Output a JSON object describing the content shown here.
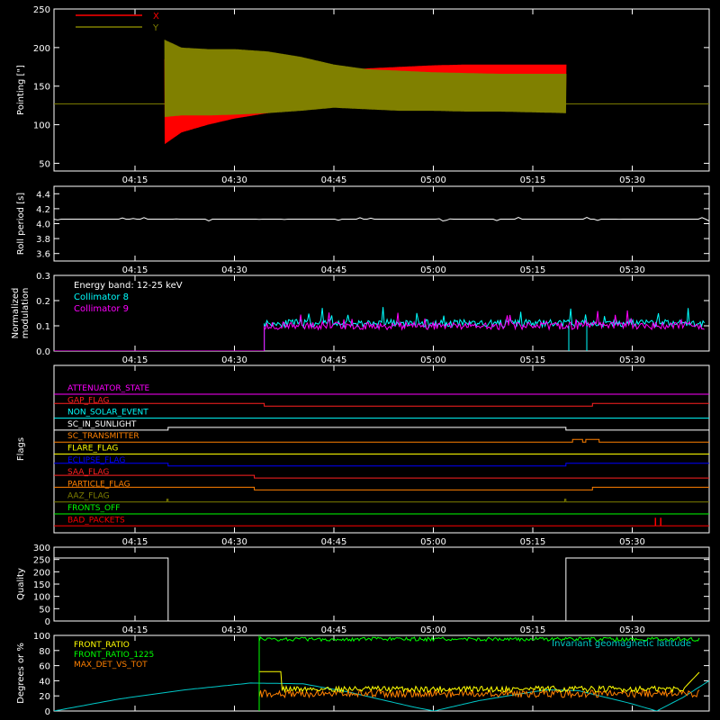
{
  "chart_data": [
    {
      "type": "line",
      "ylabel": "Pointing [\"]",
      "ylim": [
        40,
        250
      ],
      "yticks": [
        50,
        100,
        150,
        200,
        250
      ],
      "xticks": [
        "04:15",
        "04:30",
        "04:45",
        "05:00",
        "05:15",
        "05:30"
      ],
      "baseline": 127,
      "series": [
        {
          "name": "X",
          "color": "#ff0000",
          "t_start": 19.5,
          "t_end": 80,
          "upper": [
            [
              19.5,
              185
            ],
            [
              22,
              178
            ],
            [
              26,
              172
            ],
            [
              30,
              170
            ],
            [
              35,
              168
            ],
            [
              40,
              166
            ],
            [
              45,
              170
            ],
            [
              50,
              173
            ],
            [
              55,
              175
            ],
            [
              60,
              177
            ],
            [
              65,
              178
            ],
            [
              70,
              178
            ],
            [
              75,
              178
            ],
            [
              80,
              178
            ]
          ],
          "lower": [
            [
              19.5,
              75
            ],
            [
              22,
              90
            ],
            [
              26,
              100
            ],
            [
              30,
              108
            ],
            [
              35,
              115
            ],
            [
              40,
              122
            ],
            [
              45,
              128
            ],
            [
              50,
              130
            ],
            [
              55,
              132
            ],
            [
              60,
              133
            ],
            [
              65,
              134
            ],
            [
              70,
              134
            ],
            [
              75,
              134
            ],
            [
              80,
              134
            ]
          ]
        },
        {
          "name": "Y",
          "color": "#808000",
          "t_start": 19.5,
          "t_end": 80,
          "upper": [
            [
              19.5,
              210
            ],
            [
              22,
              200
            ],
            [
              26,
              198
            ],
            [
              30,
              198
            ],
            [
              35,
              195
            ],
            [
              40,
              188
            ],
            [
              45,
              178
            ],
            [
              50,
              172
            ],
            [
              55,
              170
            ],
            [
              60,
              168
            ],
            [
              65,
              167
            ],
            [
              70,
              166
            ],
            [
              75,
              166
            ],
            [
              80,
              166
            ]
          ],
          "lower": [
            [
              19.5,
              110
            ],
            [
              22,
              112
            ],
            [
              26,
              112
            ],
            [
              30,
              113
            ],
            [
              35,
              115
            ],
            [
              40,
              118
            ],
            [
              45,
              122
            ],
            [
              50,
              120
            ],
            [
              55,
              118
            ],
            [
              60,
              118
            ],
            [
              65,
              117
            ],
            [
              70,
              117
            ],
            [
              75,
              116
            ],
            [
              80,
              115
            ]
          ]
        }
      ]
    },
    {
      "type": "line",
      "ylabel": "Roll period [s]",
      "ylim": [
        3.5,
        4.5
      ],
      "yticks": [
        3.6,
        3.8,
        4.0,
        4.2,
        4.4
      ],
      "xticks": [
        "04:15",
        "04:30",
        "04:45",
        "05:00",
        "05:15",
        "05:30"
      ],
      "series": [
        {
          "color": "#ffffff",
          "level": 4.06
        }
      ]
    },
    {
      "type": "line",
      "ylabel": [
        "Normalized",
        "modulation"
      ],
      "ylim": [
        0,
        0.3
      ],
      "yticks": [
        0.0,
        0.1,
        0.2,
        0.3
      ],
      "xticks": [
        "04:15",
        "04:30",
        "04:45",
        "05:00",
        "05:15",
        "05:30"
      ],
      "annotation": "Energy band: 12-25 keV",
      "series": [
        {
          "name": "Collimator 8",
          "color": "#00ffff",
          "t_start": 34.5,
          "level": 0.11
        },
        {
          "name": "Collimator 9",
          "color": "#ff00ff",
          "t_start": 34.5,
          "level": 0.1
        }
      ]
    },
    {
      "type": "line",
      "ylabel": "Flags",
      "xticks": [
        "04:15",
        "04:30",
        "04:45",
        "05:00",
        "05:15",
        "05:30"
      ],
      "series": [
        {
          "name": "ATTENUATOR_STATE",
          "color": "#ff00ff",
          "steps": [
            [
              0,
              0
            ],
            [
              84,
              0
            ]
          ]
        },
        {
          "name": "GAP_FLAG",
          "color": "#ff2020",
          "steps": [
            [
              0,
              1
            ],
            [
              34.5,
              0
            ],
            [
              84,
              1
            ]
          ]
        },
        {
          "name": "NON_SOLAR_EVENT",
          "color": "#00ffff",
          "steps": [
            [
              0,
              0
            ],
            [
              84,
              0
            ]
          ]
        },
        {
          "name": "SC_IN_SUNLIGHT",
          "color": "#ffffff",
          "steps": [
            [
              0,
              0
            ],
            [
              20,
              1
            ],
            [
              80,
              0
            ]
          ]
        },
        {
          "name": "SC_TRANSMITTER",
          "color": "#ff8000",
          "steps": [
            [
              0,
              0
            ],
            [
              81,
              1
            ],
            [
              82.5,
              0
            ],
            [
              83,
              1
            ],
            [
              85,
              0
            ]
          ]
        },
        {
          "name": "FLARE_FLAG",
          "color": "#ffff00",
          "steps": [
            [
              0,
              0
            ],
            [
              84,
              0
            ]
          ]
        },
        {
          "name": "ECLIPSE_FLAG",
          "color": "#0000ff",
          "steps": [
            [
              0,
              1
            ],
            [
              20,
              0
            ],
            [
              80,
              1
            ]
          ]
        },
        {
          "name": "SAA_FLAG",
          "color": "#ff2020",
          "steps": [
            [
              0,
              1
            ],
            [
              33,
              0
            ]
          ]
        },
        {
          "name": "PARTICLE_FLAG",
          "color": "#ff8000",
          "steps": [
            [
              0,
              1
            ],
            [
              33,
              0
            ],
            [
              84,
              1
            ]
          ]
        },
        {
          "name": "AAZ_FLAG",
          "color": "#808000",
          "steps": [
            [
              0,
              0
            ],
            [
              19.8,
              1
            ],
            [
              20,
              0
            ],
            [
              79.8,
              1
            ],
            [
              80,
              0
            ]
          ]
        },
        {
          "name": "FRONTS_OFF",
          "color": "#00ff00",
          "steps": [
            [
              0,
              0
            ],
            [
              84,
              0
            ]
          ]
        },
        {
          "name": "BAD_PACKETS",
          "color": "#ff0000",
          "steps": [
            [
              0,
              0
            ]
          ],
          "spikes": [
            93.5,
            94.3
          ]
        }
      ]
    },
    {
      "type": "line",
      "ylabel": "Quality",
      "ylim": [
        0,
        300
      ],
      "yticks": [
        0,
        50,
        100,
        150,
        200,
        250,
        300
      ],
      "xticks": [
        "04:15",
        "04:30",
        "04:45",
        "05:00",
        "05:15",
        "05:30"
      ],
      "series": [
        {
          "color": "#ffffff",
          "steps": [
            [
              0,
              256
            ],
            [
              20,
              0
            ],
            [
              80,
              256
            ]
          ]
        }
      ]
    },
    {
      "type": "line",
      "ylabel": "Degrees or %",
      "ylim": [
        0,
        100
      ],
      "yticks": [
        0,
        20,
        40,
        60,
        80,
        100
      ],
      "annotation": "Invariant geomagnetic latitude",
      "series": [
        {
          "name": "FRONT_RATIO",
          "color": "#ffff00",
          "t_start": 34.5,
          "level": 30
        },
        {
          "name": "FRONT_RATIO_1225",
          "color": "#00ff00",
          "t_start": 34.5,
          "level": 95
        },
        {
          "name": "MAX_DET_VS_TOT",
          "color": "#ff8000",
          "t_start": 34.5,
          "level": 25
        },
        {
          "color": "#00c8c8",
          "curve": [
            [
              0,
              0
            ],
            [
              10,
              16
            ],
            [
              20,
              28
            ],
            [
              30,
              37
            ],
            [
              38,
              36
            ],
            [
              45,
              25
            ],
            [
              55,
              5
            ],
            [
              58,
              0
            ],
            [
              65,
              14
            ],
            [
              75,
              28
            ],
            [
              80,
              27
            ],
            [
              88,
              10
            ],
            [
              92,
              0
            ],
            [
              96,
              18
            ],
            [
              100,
              40
            ]
          ]
        }
      ]
    }
  ]
}
